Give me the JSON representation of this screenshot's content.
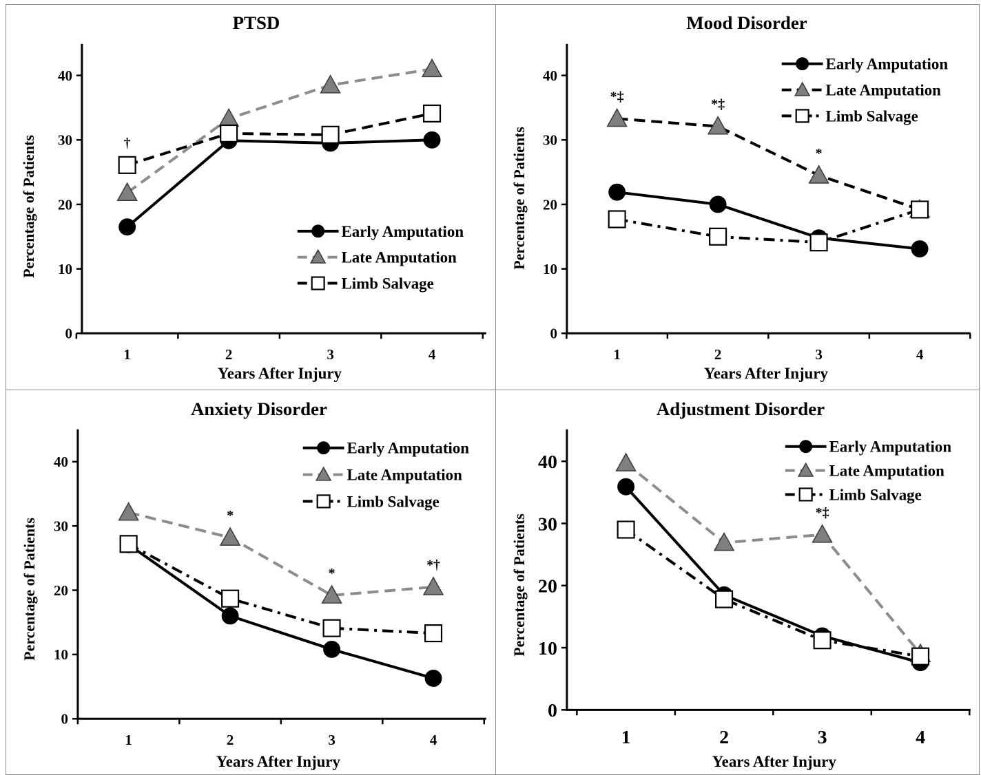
{
  "chart_data": [
    {
      "type": "line",
      "title": "PTSD",
      "xlabel": "Years After Injury",
      "ylabel": "Percentage of Patients",
      "x": [
        1,
        2,
        3,
        4
      ],
      "ylim": [
        0,
        45
      ],
      "yticks": [
        0,
        10,
        20,
        30,
        40
      ],
      "legend_position": "bottom-right",
      "series": [
        {
          "name": "Early Amputation",
          "values": [
            16.5,
            29.9,
            29.5,
            30.0
          ],
          "color": "#000000",
          "marker": "circle",
          "dash": "solid"
        },
        {
          "name": "Late Amputation",
          "values": [
            21.8,
            33.3,
            38.5,
            41.0
          ],
          "color": "#8c8c8c",
          "marker": "triangle",
          "dash": "dashed"
        },
        {
          "name": "Limb Salvage",
          "values": [
            26.1,
            31.0,
            30.8,
            34.1
          ],
          "color": "#000000",
          "marker": "square",
          "dash": "dashed"
        }
      ],
      "annotations": [
        {
          "x": 1,
          "text": "†"
        }
      ]
    },
    {
      "type": "line",
      "title": "Mood Disorder",
      "xlabel": "Years After Injury",
      "ylabel": "Percentage of Patients",
      "x": [
        1,
        2,
        3,
        4
      ],
      "ylim": [
        0,
        45
      ],
      "yticks": [
        0,
        10,
        20,
        30,
        40
      ],
      "legend_position": "top-right",
      "series": [
        {
          "name": "Early Amputation",
          "values": [
            21.9,
            20.0,
            14.8,
            13.1
          ],
          "color": "#000000",
          "marker": "circle",
          "dash": "solid"
        },
        {
          "name": "Late Amputation",
          "values": [
            33.3,
            32.1,
            24.5,
            19.2
          ],
          "color": "#000000",
          "marker": "triangle",
          "dash": "dashed"
        },
        {
          "name": "Limb Salvage",
          "values": [
            17.7,
            15.0,
            14.1,
            19.2
          ],
          "color": "#000000",
          "marker": "square",
          "dash": "dashdot"
        }
      ],
      "annotations": [
        {
          "x": 1,
          "text": "*‡"
        },
        {
          "x": 2,
          "text": "*‡"
        },
        {
          "x": 3,
          "text": "*"
        }
      ]
    },
    {
      "type": "line",
      "title": "Anxiety Disorder",
      "xlabel": "Years After Injury",
      "ylabel": "Percentage of Patients",
      "x": [
        1,
        2,
        3,
        4
      ],
      "ylim": [
        0,
        45
      ],
      "yticks": [
        0,
        10,
        20,
        30,
        40
      ],
      "legend_position": "top-right",
      "series": [
        {
          "name": "Early Amputation",
          "values": [
            27.1,
            16.0,
            10.8,
            6.3
          ],
          "color": "#000000",
          "marker": "circle",
          "dash": "solid"
        },
        {
          "name": "Late Amputation",
          "values": [
            32.1,
            28.2,
            19.2,
            20.5
          ],
          "color": "#8c8c8c",
          "marker": "triangle",
          "dash": "dashed"
        },
        {
          "name": "Limb Salvage",
          "values": [
            27.2,
            18.7,
            14.1,
            13.3
          ],
          "color": "#000000",
          "marker": "square",
          "dash": "dashdot"
        }
      ],
      "annotations": [
        {
          "x": 2,
          "text": "*"
        },
        {
          "x": 3,
          "text": "*"
        },
        {
          "x": 4,
          "text": "*†"
        }
      ]
    },
    {
      "type": "line",
      "title": "Adjustment Disorder",
      "xlabel": "Years After Injury",
      "ylabel": "Percentage of Patients",
      "x": [
        1,
        2,
        3,
        4
      ],
      "ylim": [
        0,
        45
      ],
      "yticks": [
        0,
        10,
        20,
        30,
        40
      ],
      "legend_position": "top-right",
      "series": [
        {
          "name": "Early Amputation",
          "values": [
            35.9,
            18.5,
            11.9,
            7.6
          ],
          "color": "#000000",
          "marker": "circle",
          "dash": "solid"
        },
        {
          "name": "Late Amputation",
          "values": [
            39.7,
            26.9,
            28.2,
            9.0
          ],
          "color": "#8c8c8c",
          "marker": "triangle",
          "dash": "dashed"
        },
        {
          "name": "Limb Salvage",
          "values": [
            29.0,
            17.8,
            11.2,
            8.6
          ],
          "color": "#000000",
          "marker": "square",
          "dash": "dashdot"
        }
      ],
      "annotations": [
        {
          "x": 3,
          "text": "*‡"
        }
      ]
    }
  ]
}
